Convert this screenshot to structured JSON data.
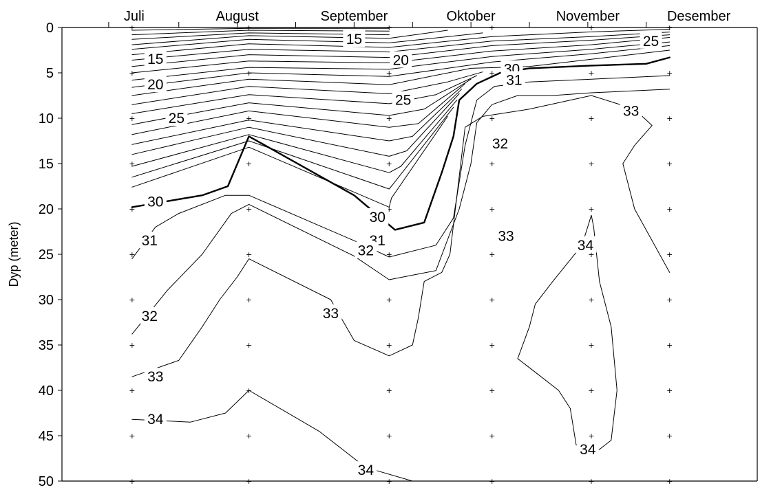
{
  "chart_data": {
    "type": "contour",
    "ylabel": "Dyp (meter)",
    "xlabel": "",
    "title": "",
    "months": [
      "Juli",
      "August",
      "September",
      "Oktober",
      "November",
      "Desember"
    ],
    "ylim": [
      0,
      50
    ],
    "y_ticks": [
      0,
      5,
      10,
      15,
      20,
      25,
      30,
      35,
      40,
      45,
      50
    ],
    "y_inverted": true,
    "sample_depths": [
      0,
      5,
      10,
      15,
      20,
      25,
      30,
      35,
      40,
      45,
      50
    ],
    "sample_times": [
      1.6,
      2.6,
      3.8,
      4.68,
      5.53,
      6.2
    ],
    "grid": false,
    "contour_levels": [
      {
        "level": 15,
        "bold": false,
        "labels": [
          {
            "x": 1.8,
            "y": 3.5,
            "text": "15"
          },
          {
            "x": 3.5,
            "y": 1.3,
            "text": "15"
          }
        ]
      },
      {
        "level": 20,
        "bold": false,
        "labels": [
          {
            "x": 1.8,
            "y": 6.3,
            "text": "20"
          },
          {
            "x": 3.9,
            "y": 3.6,
            "text": "20"
          }
        ]
      },
      {
        "level": 25,
        "bold": false,
        "labels": [
          {
            "x": 1.98,
            "y": 10.0,
            "text": "25"
          },
          {
            "x": 3.92,
            "y": 8.0,
            "text": "25"
          },
          {
            "x": 6.04,
            "y": 1.5,
            "text": "25"
          }
        ]
      },
      {
        "level": 30,
        "bold": true,
        "labels": [
          {
            "x": 1.8,
            "y": 19.2,
            "text": "30"
          },
          {
            "x": 3.7,
            "y": 20.9,
            "text": "30"
          },
          {
            "x": 4.85,
            "y": 4.6,
            "text": "30"
          }
        ]
      },
      {
        "level": 31,
        "bold": false,
        "labels": [
          {
            "x": 1.75,
            "y": 23.5,
            "text": "31"
          },
          {
            "x": 3.7,
            "y": 23.5,
            "text": "31"
          },
          {
            "x": 4.87,
            "y": 5.8,
            "text": "31"
          }
        ]
      },
      {
        "level": 32,
        "bold": false,
        "labels": [
          {
            "x": 1.75,
            "y": 31.8,
            "text": "32"
          },
          {
            "x": 3.6,
            "y": 24.6,
            "text": "32"
          },
          {
            "x": 4.75,
            "y": 12.8,
            "text": "32"
          }
        ]
      },
      {
        "level": 33,
        "bold": false,
        "labels": [
          {
            "x": 1.8,
            "y": 38.5,
            "text": "33"
          },
          {
            "x": 3.3,
            "y": 31.5,
            "text": "33"
          },
          {
            "x": 4.8,
            "y": 23.0,
            "text": "33"
          },
          {
            "x": 5.87,
            "y": 9.2,
            "text": "33"
          }
        ]
      },
      {
        "level": 34,
        "bold": false,
        "labels": [
          {
            "x": 1.8,
            "y": 43.2,
            "text": "34"
          },
          {
            "x": 3.6,
            "y": 48.8,
            "text": "34"
          },
          {
            "x": 5.48,
            "y": 24.0,
            "text": "34"
          },
          {
            "x": 5.5,
            "y": 46.5,
            "text": "34"
          }
        ]
      }
    ]
  }
}
